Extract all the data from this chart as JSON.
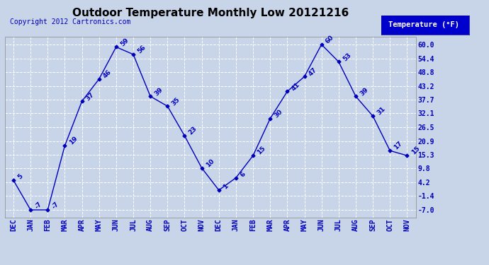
{
  "title": "Outdoor Temperature Monthly Low 20121216",
  "copyright": "Copyright 2012 Cartronics.com",
  "legend_label": "Temperature (°F)",
  "x_labels": [
    "DEC",
    "JAN",
    "FEB",
    "MAR",
    "APR",
    "MAY",
    "JUN",
    "JUL",
    "AUG",
    "SEP",
    "OCT",
    "NOV",
    "DEC",
    "JAN",
    "FEB",
    "MAR",
    "APR",
    "MAY",
    "JUN",
    "JUL",
    "AUG",
    "SEP",
    "OCT",
    "NOV"
  ],
  "y_values": [
    5,
    -7,
    -7,
    19,
    37,
    46,
    59,
    56,
    39,
    35,
    23,
    10,
    1,
    6,
    15,
    30,
    41,
    47,
    60,
    53,
    39,
    31,
    17,
    15
  ],
  "y_labels": [
    "-7.0",
    "-1.4",
    "4.2",
    "9.8",
    "15.3",
    "20.9",
    "26.5",
    "32.1",
    "37.7",
    "43.2",
    "48.8",
    "54.4",
    "60.0"
  ],
  "y_ticks": [
    -7.0,
    -1.4,
    4.2,
    9.8,
    15.3,
    20.9,
    26.5,
    32.1,
    37.7,
    43.2,
    48.8,
    54.4,
    60.0
  ],
  "ylim": [
    -10.0,
    63.0
  ],
  "xlim": [
    -0.5,
    23.5
  ],
  "line_color": "#0000bb",
  "marker": "D",
  "marker_size": 2.5,
  "bg_color": "#c8d4e8",
  "plot_bg_color": "#c8d4e8",
  "grid_color": "#ffffff",
  "title_color": "#000000",
  "label_color": "#0000bb",
  "copyright_color": "#0000bb",
  "legend_bg": "#0000cc",
  "legend_text_color": "#ffffff",
  "title_fontsize": 11,
  "tick_fontsize": 7,
  "annot_fontsize": 6.5,
  "copyright_fontsize": 7
}
